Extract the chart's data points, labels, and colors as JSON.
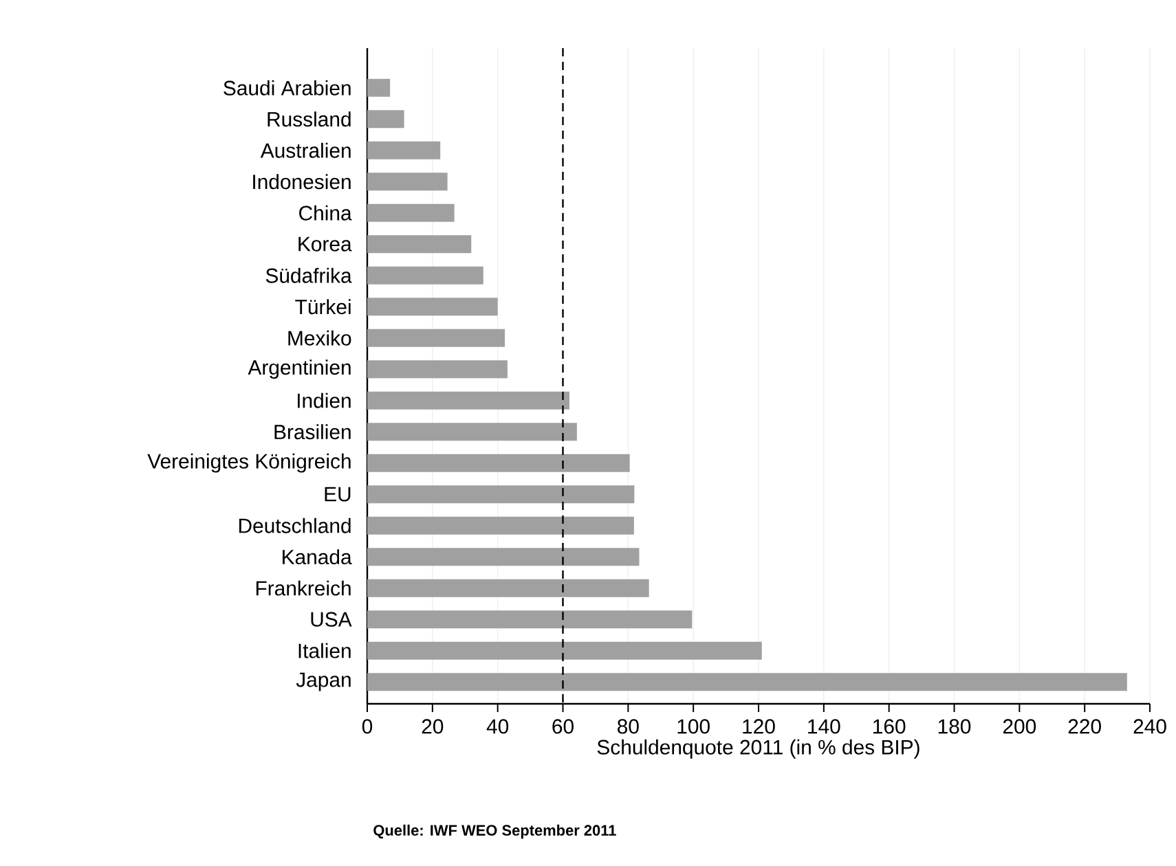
{
  "chart_data": {
    "type": "bar",
    "orientation": "horizontal",
    "xlabel": "Schuldenquote 2011 (in % des BIP)",
    "categories": [
      "Saudi Arabien",
      "Russland",
      "Australien",
      "Indonesien",
      "China",
      "Korea",
      "Südafrika",
      "Türkei",
      "Mexiko",
      "Argentinien",
      "Indien",
      "Brasilien",
      "Vereinigtes Königreich",
      "EU",
      "Deutschland",
      "Kanada",
      "Frankreich",
      "USA",
      "Italien",
      "Japan"
    ],
    "values": [
      7,
      11.3,
      22.4,
      24.6,
      26.7,
      31.9,
      35.6,
      40,
      42.2,
      43,
      62,
      64.3,
      80.5,
      81.9,
      81.8,
      83.4,
      86.4,
      99.6,
      121,
      233
    ],
    "color": "#a0a0a0",
    "xlim": [
      0,
      240
    ],
    "xticks": [
      0,
      20,
      40,
      60,
      80,
      100,
      120,
      140,
      160,
      180,
      200,
      220,
      240
    ],
    "grid": "x",
    "ref_lines": [
      {
        "axis": "x",
        "value": 60,
        "line_style": "dashed",
        "color": "#000000"
      }
    ],
    "annotations": [
      "Quelle: IWF WEO September 2011"
    ]
  }
}
